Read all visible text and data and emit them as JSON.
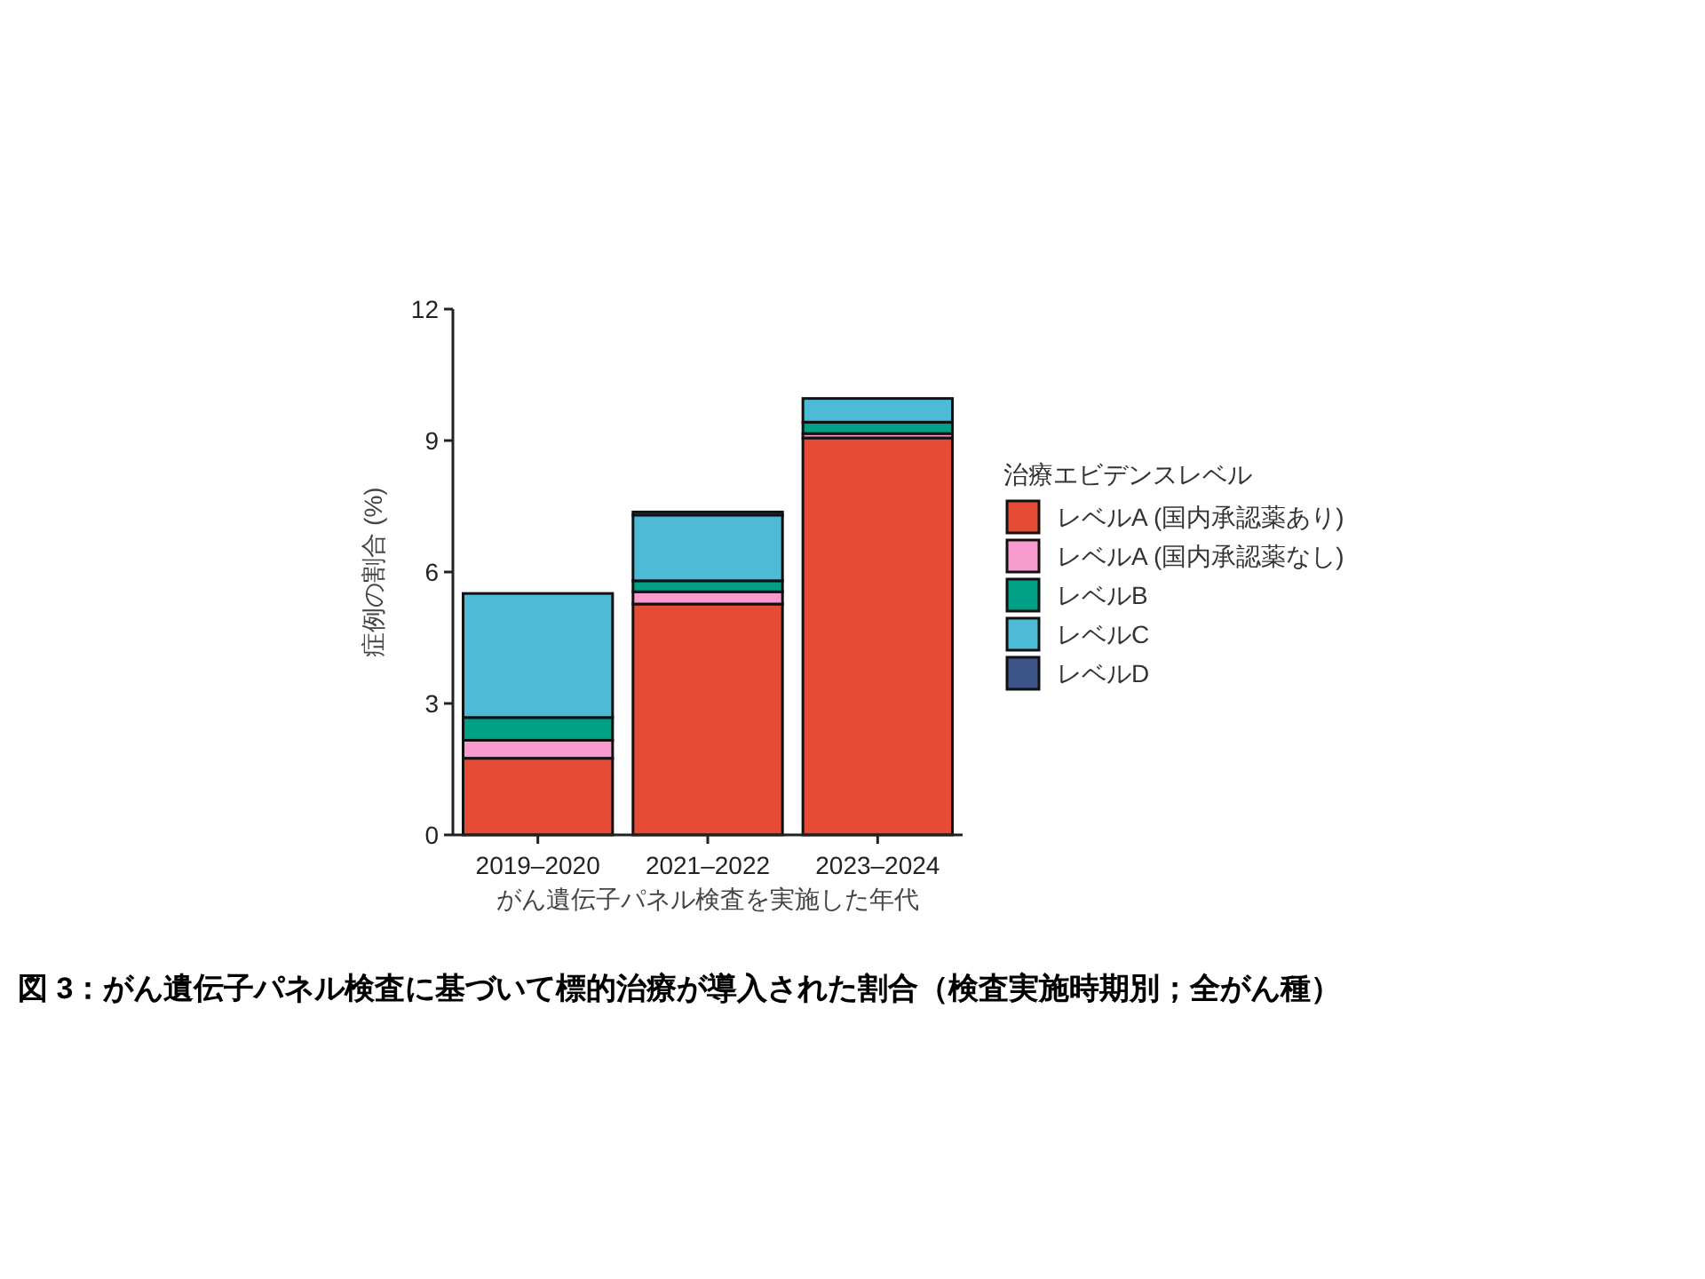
{
  "chart_data": {
    "type": "bar",
    "stacked": true,
    "ylabel": "症例の割合 (%)",
    "xlabel": "がん遺伝子パネル検査を実施した年代",
    "legend_title": "治療エビデンスレベル",
    "legend": "right",
    "annotations": [
      "図 3：がん遺伝子パネル検査に基づいて標的治療が導入された割合（検査実施時期別；全がん種）"
    ],
    "categories": [
      "2019–2020",
      "2021–2022",
      "2023–2024"
    ],
    "ylim": [
      0,
      12
    ],
    "yticks": [
      0,
      3,
      6,
      9,
      12
    ],
    "series": [
      {
        "name": "レベルA (国内承認薬あり)",
        "color": "#e64b35",
        "values": [
          1.75,
          5.27,
          9.06
        ]
      },
      {
        "name": "レベルA (国内承認薬なし)",
        "color": "#f89ccf",
        "values": [
          0.41,
          0.28,
          0.1
        ]
      },
      {
        "name": "レベルB",
        "color": "#00a087",
        "values": [
          0.52,
          0.25,
          0.26
        ]
      },
      {
        "name": "レベルC",
        "color": "#4dbbd5",
        "values": [
          2.83,
          1.5,
          0.54
        ]
      },
      {
        "name": "レベルD",
        "color": "#3c5488",
        "values": [
          0,
          0.07,
          0
        ]
      }
    ]
  }
}
